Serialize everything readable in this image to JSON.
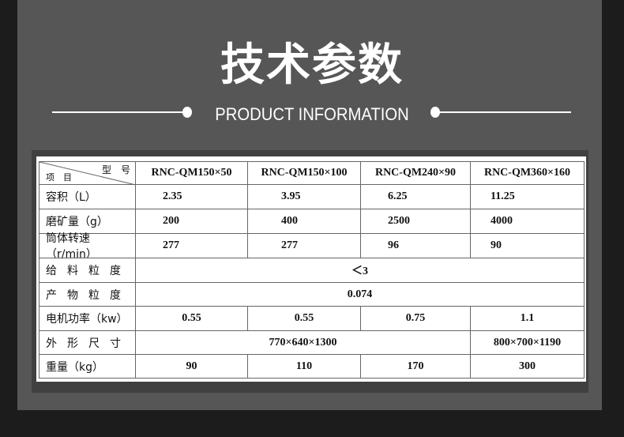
{
  "title": "技术参数",
  "subtitle": "PRODUCT INFORMATION",
  "table": {
    "corner": {
      "top": "型　号",
      "bottom": "项　目"
    },
    "models": [
      "RNC-QM150×50",
      "RNC-QM150×100",
      "RNC-QM240×90",
      "RNC-QM360×160"
    ],
    "rows": [
      {
        "label": "容积（L）",
        "values": [
          "2.35",
          "3.95",
          "6.25",
          "11.25"
        ]
      },
      {
        "label": "磨矿量（g）",
        "values": [
          "200",
          "400",
          "2500",
          "4000"
        ]
      },
      {
        "label": "筒体转速（r/min）",
        "values": [
          "277",
          "277",
          "96",
          "90"
        ]
      },
      {
        "label": "给料粒度",
        "value": "＜3"
      },
      {
        "label": "产物粒度",
        "value": "0.074"
      },
      {
        "label": "电机功率（kw）",
        "values": [
          "0.55",
          "0.55",
          "0.75",
          "1.1"
        ]
      },
      {
        "label": "外形尺寸",
        "values": [
          "770×640×1300",
          "800×700×1190"
        ]
      },
      {
        "label": "重量（kg）",
        "values": [
          "90",
          "110",
          "170",
          "300"
        ]
      }
    ]
  }
}
